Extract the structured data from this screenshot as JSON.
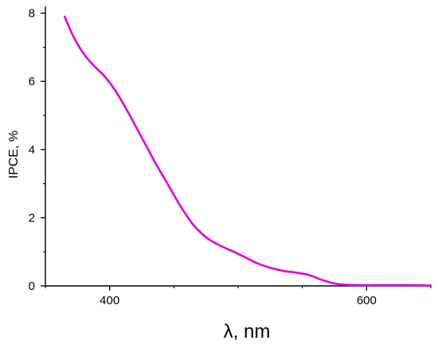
{
  "chart_data": {
    "type": "line",
    "xlabel": "λ, nm",
    "ylabel": "IPCE, %",
    "xlim": [
      350,
      650
    ],
    "ylim": [
      0,
      8.2
    ],
    "x_ticks": [
      400,
      600
    ],
    "x_minor_ticks": [
      350,
      450,
      500,
      550,
      650
    ],
    "y_ticks": [
      0,
      2,
      4,
      6,
      8
    ],
    "y_minor_ticks": [
      1,
      3,
      5,
      7
    ],
    "grid": false,
    "series": [
      {
        "color": "#e000e0",
        "x": [
          365,
          372,
          380,
          388,
          396,
          405,
          415,
          425,
          435,
          445,
          455,
          465,
          475,
          485,
          495,
          505,
          515,
          525,
          535,
          545,
          555,
          565,
          575,
          585,
          595,
          605,
          615,
          625,
          635,
          650
        ],
        "y": [
          7.9,
          7.3,
          6.8,
          6.45,
          6.15,
          5.7,
          5.05,
          4.35,
          3.65,
          3.0,
          2.35,
          1.8,
          1.43,
          1.2,
          1.03,
          0.85,
          0.66,
          0.53,
          0.44,
          0.39,
          0.32,
          0.18,
          0.07,
          0.03,
          0.02,
          0.02,
          0.02,
          0.02,
          0.02,
          0.01
        ]
      }
    ]
  }
}
